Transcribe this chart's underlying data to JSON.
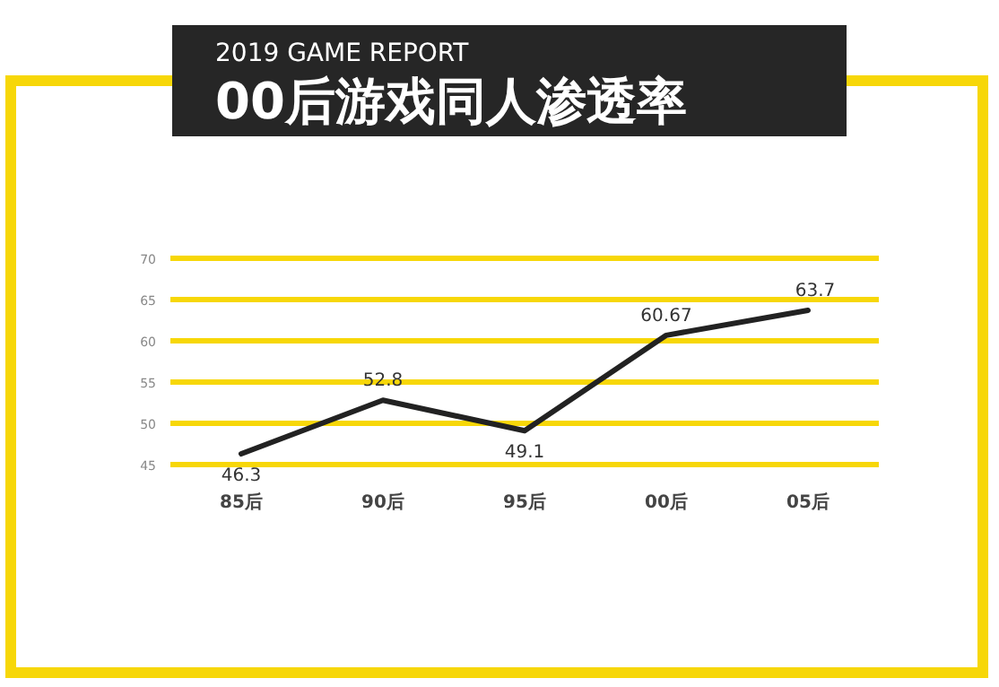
{
  "chart_data": {
    "type": "line",
    "title": "00后游戏同人渗透率",
    "subtitle": "2019 GAME REPORT",
    "categories": [
      "85后",
      "90后",
      "95后",
      "00后",
      "05后"
    ],
    "values": [
      46.3,
      52.8,
      49.1,
      60.67,
      63.7
    ],
    "color": "#222222",
    "ylim": [
      45,
      70
    ],
    "yticks": [
      45,
      50,
      55,
      60,
      65,
      70
    ],
    "grid": "y",
    "data_labels": true
  }
}
